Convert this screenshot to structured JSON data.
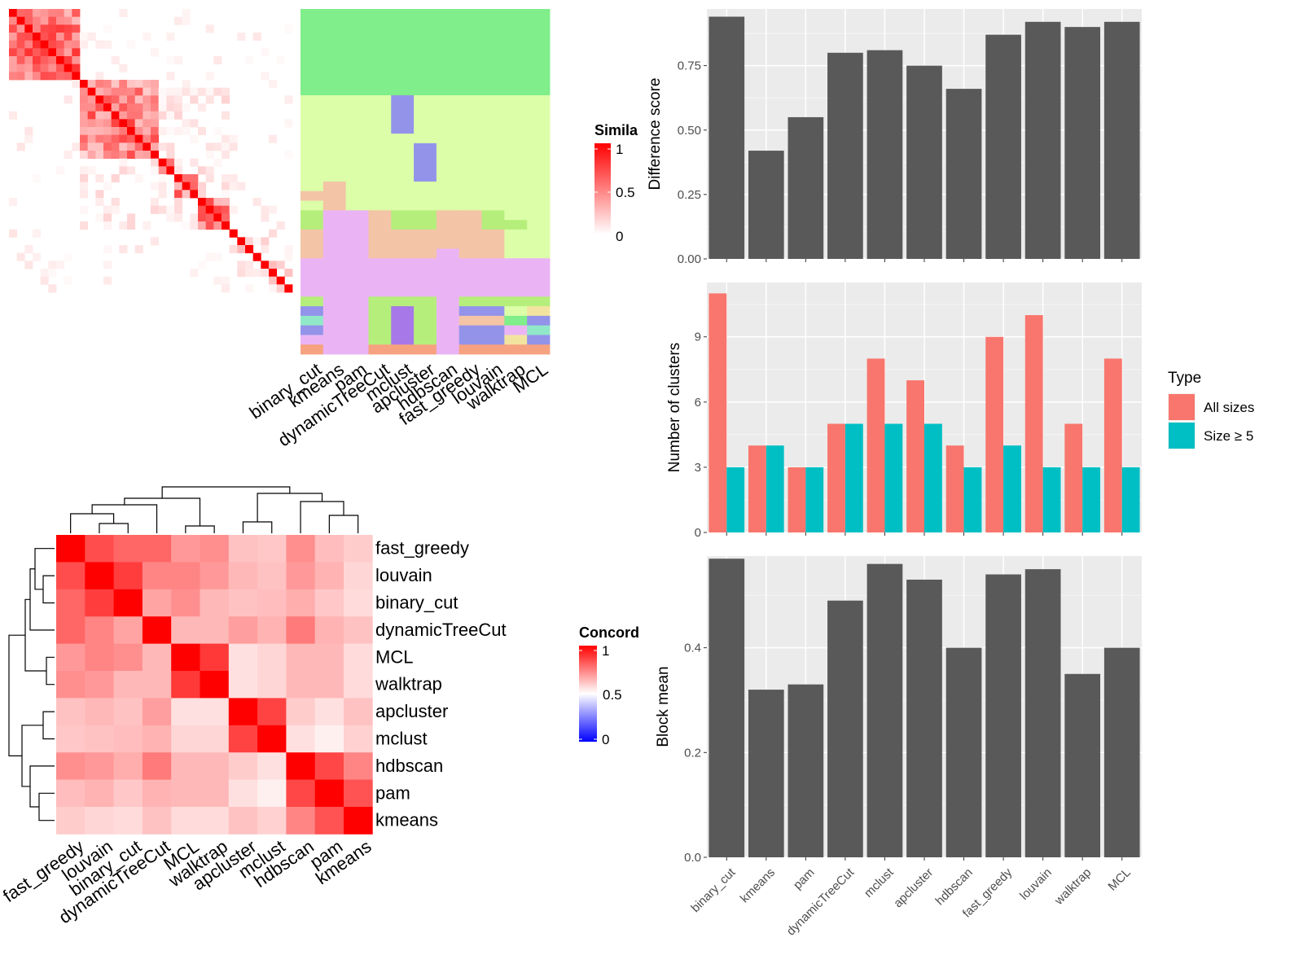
{
  "chart_data": [
    {
      "id": "similarity",
      "type": "heatmap",
      "legend": {
        "title": "Simila",
        "ticks": [
          "1",
          "0.5",
          "0"
        ],
        "colors": [
          "#ff0000",
          "#ffffff"
        ]
      },
      "size": 36,
      "block_sizes": [
        9,
        10,
        2,
        3,
        4,
        8
      ]
    },
    {
      "id": "cluster-assignments",
      "type": "heatmap",
      "columns": [
        "binary_cut",
        "kmeans",
        "pam",
        "dynamicTreeCut",
        "mclust",
        "apcluster",
        "hdbscan",
        "fast_greedy",
        "louvain",
        "walktrap",
        "MCL"
      ],
      "palette": {
        "A": "#80ee8a",
        "B": "#dcfea8",
        "C": "#9393ea",
        "D": "#f4c4a6",
        "E": "#b6ee7c",
        "F": "#eab4f4",
        "G": "#91e8c8",
        "H": "#a678e8",
        "I": "#f6a280",
        "J": "#f2e4a0"
      },
      "rows": [
        "AAAAAAAAAAA",
        "AAAAAAAAAAA",
        "AAAAAAAAAAA",
        "AAAAAAAAAAA",
        "AAAAAAAAAAA",
        "AAAAAAAAAAA",
        "AAAAAAAAAAA",
        "AAAAAAAAAAA",
        "AAAAAAAAAAA",
        "BBBBCBBBBBB",
        "BBBBCBBBBBB",
        "BBBBCBBBBBB",
        "BBBBCBBBBBB",
        "BBBBBBBBBBB",
        "BBBBBCBBBBB",
        "BBBBBCBBBBB",
        "BBBBBCBBBBB",
        "BBBBBCBBBBB",
        "BDBBBBBBBBB",
        "DDBBBBBBBBB",
        "BDBBBBBBBBB",
        "EFFDEEDDEBB",
        "EFFDEEDDEEB",
        "DFFDDDDDDBB",
        "DFFDDDDDDBB",
        "DFFDDDFDDBB",
        "FFFFFFFFFFF",
        "FFFFFFFFFFF",
        "FFFFFFFFFFF",
        "FFFFFFFFFFF",
        "EFFEEEFEEEE",
        "CFFEHEFCCBJ",
        "GFFEHEFDDAC",
        "CFFEHEFCCFG",
        "FFFEHEFCCJC",
        "IFFIIIFIIII"
      ]
    },
    {
      "id": "concordance",
      "type": "heatmap",
      "labels": [
        "fast_greedy",
        "louvain",
        "binary_cut",
        "dynamicTreeCut",
        "MCL",
        "walktrap",
        "apcluster",
        "mclust",
        "hdbscan",
        "pam",
        "kmeans"
      ],
      "legend": {
        "title": "Concord",
        "ticks": [
          "1",
          "0.5",
          "0"
        ],
        "colors": [
          "#0000ff",
          "#ffffff",
          "#ff0000"
        ]
      },
      "values": [
        [
          1.0,
          0.85,
          0.8,
          0.8,
          0.7,
          0.72,
          0.62,
          0.61,
          0.72,
          0.63,
          0.6
        ],
        [
          0.85,
          1.0,
          0.88,
          0.74,
          0.74,
          0.7,
          0.64,
          0.62,
          0.7,
          0.65,
          0.58
        ],
        [
          0.8,
          0.88,
          1.0,
          0.68,
          0.72,
          0.64,
          0.62,
          0.63,
          0.66,
          0.61,
          0.57
        ],
        [
          0.8,
          0.74,
          0.68,
          1.0,
          0.64,
          0.64,
          0.69,
          0.65,
          0.76,
          0.65,
          0.62
        ],
        [
          0.7,
          0.74,
          0.72,
          0.64,
          1.0,
          0.89,
          0.56,
          0.58,
          0.64,
          0.64,
          0.57
        ],
        [
          0.72,
          0.7,
          0.64,
          0.64,
          0.89,
          1.0,
          0.56,
          0.58,
          0.64,
          0.64,
          0.57
        ],
        [
          0.62,
          0.64,
          0.62,
          0.69,
          0.56,
          0.56,
          1.0,
          0.87,
          0.6,
          0.56,
          0.62
        ],
        [
          0.61,
          0.62,
          0.63,
          0.65,
          0.58,
          0.58,
          0.87,
          1.0,
          0.56,
          0.53,
          0.59
        ],
        [
          0.72,
          0.7,
          0.66,
          0.76,
          0.64,
          0.64,
          0.6,
          0.56,
          1.0,
          0.86,
          0.74
        ],
        [
          0.63,
          0.65,
          0.61,
          0.65,
          0.64,
          0.64,
          0.56,
          0.53,
          0.86,
          1.0,
          0.84
        ],
        [
          0.6,
          0.58,
          0.57,
          0.62,
          0.57,
          0.57,
          0.62,
          0.59,
          0.74,
          0.84,
          1.0
        ]
      ],
      "row_dendrogram": "yes",
      "column_dendrogram": "yes"
    },
    {
      "id": "difference-score",
      "type": "bar",
      "categories": [
        "binary_cut",
        "kmeans",
        "pam",
        "dynamicTreeCut",
        "mclust",
        "apcluster",
        "hdbscan",
        "fast_greedy",
        "louvain",
        "walktrap",
        "MCL"
      ],
      "values": [
        0.94,
        0.42,
        0.55,
        0.8,
        0.81,
        0.75,
        0.66,
        0.87,
        0.92,
        0.9,
        0.92
      ],
      "xlabel": "",
      "ylabel": "Difference score",
      "ylim": [
        0,
        0.97
      ],
      "yticks": [
        "0.00",
        "0.25",
        "0.50",
        "0.75"
      ],
      "bar_color": "#595959"
    },
    {
      "id": "number-of-clusters",
      "type": "bar",
      "categories": [
        "binary_cut",
        "kmeans",
        "pam",
        "dynamicTreeCut",
        "mclust",
        "apcluster",
        "hdbscan",
        "fast_greedy",
        "louvain",
        "walktrap",
        "MCL"
      ],
      "series": [
        {
          "name": "All sizes",
          "values": [
            11,
            4,
            3,
            5,
            8,
            7,
            4,
            9,
            10,
            5,
            8
          ],
          "color": "#f8766d"
        },
        {
          "name": "Size ≥ 5",
          "values": [
            3,
            4,
            3,
            5,
            5,
            5,
            3,
            4,
            3,
            3,
            3
          ],
          "color": "#00bfc4"
        }
      ],
      "xlabel": "",
      "ylabel": "Number of clusters",
      "ylim": [
        0,
        11.5
      ],
      "yticks": [
        "0",
        "3",
        "6",
        "9"
      ],
      "legend": {
        "title": "Type",
        "position": "right"
      }
    },
    {
      "id": "block-mean",
      "type": "bar",
      "categories": [
        "binary_cut",
        "kmeans",
        "pam",
        "dynamicTreeCut",
        "mclust",
        "apcluster",
        "hdbscan",
        "fast_greedy",
        "louvain",
        "walktrap",
        "MCL"
      ],
      "values": [
        0.57,
        0.32,
        0.33,
        0.49,
        0.56,
        0.53,
        0.4,
        0.54,
        0.55,
        0.35,
        0.4
      ],
      "xlabel": "",
      "ylabel": "Block mean",
      "ylim": [
        0,
        0.575
      ],
      "yticks": [
        "0.0",
        "0.2",
        "0.4"
      ],
      "bar_color": "#595959"
    }
  ]
}
